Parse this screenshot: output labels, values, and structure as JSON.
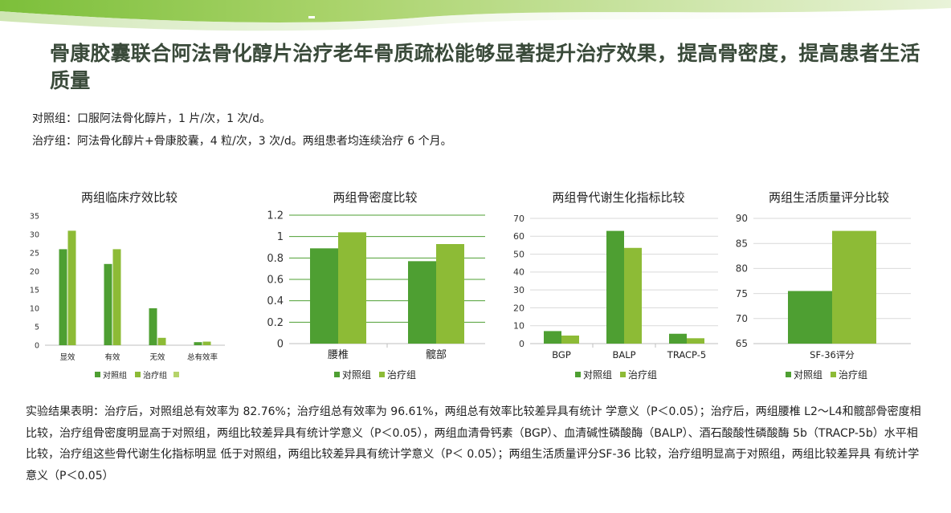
{
  "title": "骨康胶囊联合阿法骨化醇片治疗老年骨质疏松能够显著提升治疗效果，提高骨密度，提高患者生活质量",
  "intro": {
    "control": "对照组：口服阿法骨化醇片，1 片/次，1 次/d。",
    "treatment": "治疗组：阿法骨化醇片+骨康胶囊，4 粒/次，3 次/d。两组患者均连续治疗 6 个月。"
  },
  "colors": {
    "control": "#4e9f32",
    "treatment": "#8dbb36",
    "grid": "#d9d9d9",
    "gridGreen": "#4e9f32"
  },
  "chart_data": [
    {
      "type": "bar",
      "title": "两组临床疗效比较",
      "categories": [
        "显效",
        "有效",
        "无效",
        "总有效率"
      ],
      "ylim": [
        0,
        35
      ],
      "ticks": [
        0,
        5,
        10,
        15,
        20,
        25,
        30,
        35
      ],
      "grid": false,
      "legend_position": "bottom",
      "legend_extra_swatch": true,
      "series": [
        {
          "name": "对照组",
          "values": [
            26,
            22,
            10,
            0.83
          ]
        },
        {
          "name": "治疗组",
          "values": [
            31,
            26,
            2,
            0.97
          ]
        }
      ]
    },
    {
      "type": "bar",
      "title": "两组骨密度比较",
      "categories": [
        "腰椎",
        "髋部"
      ],
      "ylim": [
        0,
        1.2
      ],
      "ticks": [
        0,
        0.2,
        0.4,
        0.6,
        0.8,
        1,
        1.2
      ],
      "grid": true,
      "legend_position": "bottom",
      "series": [
        {
          "name": "对照组",
          "values": [
            0.89,
            0.77
          ]
        },
        {
          "name": "治疗组",
          "values": [
            1.04,
            0.93
          ]
        }
      ]
    },
    {
      "type": "bar",
      "title": "两组骨代谢生化指标比较",
      "categories": [
        "BGP",
        "BALP",
        "TRACP-5"
      ],
      "ylim": [
        0,
        70
      ],
      "ticks": [
        0,
        10,
        20,
        30,
        40,
        50,
        60,
        70
      ],
      "grid": true,
      "legend_position": "bottom",
      "series": [
        {
          "name": "对照组",
          "values": [
            7,
            63,
            5.5
          ]
        },
        {
          "name": "治疗组",
          "values": [
            4.5,
            53.5,
            3
          ]
        }
      ]
    },
    {
      "type": "bar",
      "title": "两组生活质量评分比较",
      "categories": [
        "SF-36评分"
      ],
      "ylim": [
        65,
        90
      ],
      "ticks": [
        65,
        70,
        75,
        80,
        85,
        90
      ],
      "grid": true,
      "legend_position": "bottom",
      "series": [
        {
          "name": "对照组",
          "values": [
            75.5
          ]
        },
        {
          "name": "治疗组",
          "values": [
            87.5
          ]
        }
      ]
    }
  ],
  "conclusion": "实验结果表明：治疗后，对照组总有效率为 82.76%；治疗组总有效率为 96.61%，两组总有效率比较差异具有统计 学意义（P＜0.05）；治疗后，两组腰椎 L2～L4和髋部骨密度相比较，治疗组骨密度明显高于对照组，两组比较差异具有统计学意义（P＜0.05），两组血清骨钙素（BGP）、血清碱性磷酸酶（BALP）、酒石酸酸性磷酸酶 5b（TRACP-5b）水平相比较，治疗组这些骨代谢生化指标明显 低于对照组，两组比较差异具有统计学意义（P＜ 0.05）；两组生活质量评分SF-36 比较，治疗组明显高于对照组，两组比较差异具 有统计学意义（P＜0.05）"
}
